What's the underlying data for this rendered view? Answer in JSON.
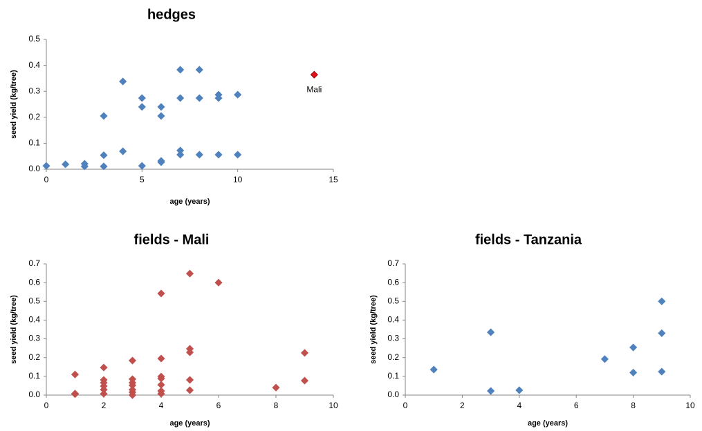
{
  "chart_data": [
    {
      "type": "scatter",
      "title": "hedges",
      "x_label": "age (years)",
      "y_label": "seed yield (kg/tree)",
      "xlim": [
        0,
        15
      ],
      "xticks": [
        0,
        5,
        10,
        15
      ],
      "ylim": [
        0,
        0.5
      ],
      "yticks": [
        {
          "value": 0,
          "label": "0.0"
        },
        0.1,
        0.2,
        0.3,
        0.4,
        0.5
      ],
      "series": [
        {
          "color": "#4f81bd",
          "x": [
            0,
            1,
            2,
            2,
            3,
            3,
            3,
            4,
            4,
            5,
            5,
            5,
            6,
            6,
            6,
            6,
            7,
            7,
            7,
            7,
            8,
            8,
            8,
            9,
            9,
            9,
            10,
            10
          ],
          "values": [
            0.013,
            0.019,
            0.021,
            0.011,
            0.205,
            0.054,
            0.011,
            0.338,
            0.069,
            0.274,
            0.24,
            0.013,
            0.24,
            0.205,
            0.032,
            0.027,
            0.383,
            0.274,
            0.072,
            0.056,
            0.383,
            0.274,
            0.056,
            0.287,
            0.274,
            0.056,
            0.287,
            0.056
          ]
        },
        {
          "color": "#e0101a",
          "label": "Mali",
          "x": [
            14
          ],
          "values": [
            0.364
          ]
        }
      ]
    },
    {
      "type": "scatter",
      "title": "fields - Mali",
      "x_label": "age (years)",
      "y_label": "seed yield (kg/tree)",
      "xlim": [
        0,
        10
      ],
      "xticks": [
        0,
        2,
        4,
        6,
        8,
        10
      ],
      "ylim": [
        0,
        0.7
      ],
      "yticks": [
        {
          "value": 0,
          "label": "0.0"
        },
        0.1,
        0.2,
        0.3,
        0.4,
        0.5,
        0.6,
        0.7
      ],
      "series": [
        {
          "color": "#c0504d",
          "x": [
            1,
            1,
            1,
            2,
            2,
            2,
            2,
            2,
            2,
            3,
            3,
            3,
            3,
            3,
            3,
            3,
            4,
            4,
            4,
            4,
            4,
            4,
            4,
            5,
            5,
            5,
            5,
            5,
            6,
            8,
            9,
            9
          ],
          "values": [
            0.11,
            0.005,
            0.008,
            0.147,
            0.081,
            0.066,
            0.048,
            0.029,
            0.007,
            0.184,
            0.085,
            0.066,
            0.052,
            0.029,
            0.015,
            0.0,
            0.542,
            0.195,
            0.099,
            0.088,
            0.055,
            0.022,
            0.007,
            0.648,
            0.247,
            0.228,
            0.081,
            0.026,
            0.6,
            0.04,
            0.225,
            0.077
          ]
        }
      ]
    },
    {
      "type": "scatter",
      "title": "fields - Tanzania",
      "x_label": "age (years)",
      "y_label": "seed yield (kg/tree)",
      "xlim": [
        0,
        10
      ],
      "xticks": [
        0,
        2,
        4,
        6,
        8,
        10
      ],
      "ylim": [
        0,
        0.7
      ],
      "yticks": [
        {
          "value": 0,
          "label": "0.0"
        },
        0.1,
        0.2,
        0.3,
        0.4,
        0.5,
        0.6,
        0.7
      ],
      "series": [
        {
          "color": "#4f81bd",
          "x": [
            1,
            3,
            3,
            4,
            7,
            8,
            8,
            9,
            9,
            9
          ],
          "values": [
            0.136,
            0.335,
            0.022,
            0.026,
            0.192,
            0.254,
            0.12,
            0.5,
            0.33,
            0.125
          ]
        }
      ]
    }
  ]
}
